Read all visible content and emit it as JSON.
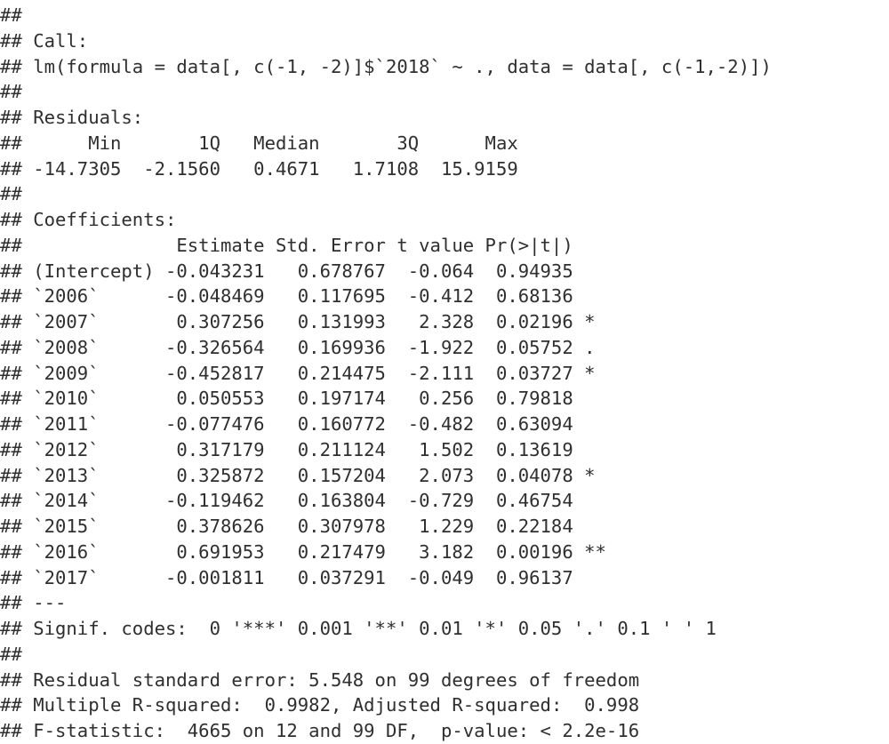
{
  "prompt": "## ",
  "lines": [
    "",
    "Call:",
    "lm(formula = data[, c(-1, -2)]$`2018` ~ ., data = data[, c(-1,-2)])",
    "",
    "Residuals:",
    "     Min       1Q   Median       3Q      Max ",
    "-14.7305  -2.1560   0.4671   1.7108  15.9159 ",
    "",
    "Coefficients:",
    "             Estimate Std. Error t value Pr(>|t|)   ",
    "(Intercept) -0.043231   0.678767  -0.064  0.94935   ",
    "`2006`      -0.048469   0.117695  -0.412  0.68136   ",
    "`2007`       0.307256   0.131993   2.328  0.02196 * ",
    "`2008`      -0.326564   0.169936  -1.922  0.05752 . ",
    "`2009`      -0.452817   0.214475  -2.111  0.03727 * ",
    "`2010`       0.050553   0.197174   0.256  0.79818   ",
    "`2011`      -0.077476   0.160772  -0.482  0.63094   ",
    "`2012`       0.317179   0.211124   1.502  0.13619   ",
    "`2013`       0.325872   0.157204   2.073  0.04078 * ",
    "`2014`      -0.119462   0.163804  -0.729  0.46754   ",
    "`2015`       0.378626   0.307978   1.229  0.22184   ",
    "`2016`       0.691953   0.217479   3.182  0.00196 **",
    "`2017`      -0.001811   0.037291  -0.049  0.96137   ",
    "---",
    "Signif. codes:  0 '***' 0.001 '**' 0.01 '*' 0.05 '.' 0.1 ' ' 1",
    "",
    "Residual standard error: 5.548 on 99 degrees of freedom",
    "Multiple R-squared:  0.9982,\tAdjusted R-squared:  0.998 ",
    "F-statistic:  4665 on 12 and 99 DF,  p-value: < 2.2e-16"
  ]
}
